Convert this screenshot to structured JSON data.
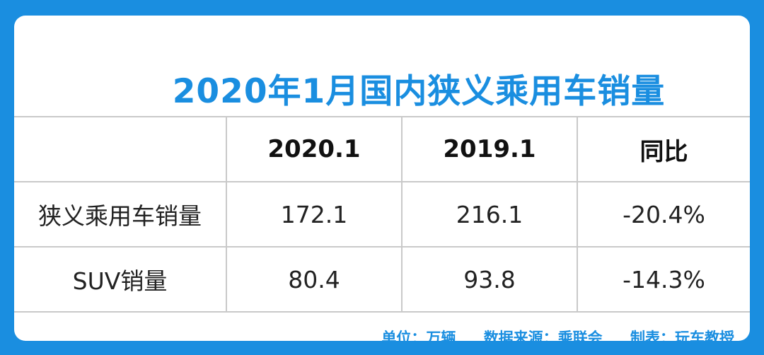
{
  "title": "2020年1月国内狭义乘用车销量",
  "table": {
    "header": [
      "",
      "2020.1",
      "2019.1",
      "同比"
    ],
    "rows": [
      [
        "狭义乘用车销量",
        "172.1",
        "216.1",
        "-20.4%"
      ],
      [
        "SUV销量",
        "80.4",
        "93.8",
        "-14.3%"
      ]
    ]
  },
  "footer": {
    "unit": "单位：万辆",
    "source": "数据来源：乘联会",
    "maker": "制表：玩车教授"
  },
  "colors": {
    "accent": "#1a8ee0",
    "border": "#c9c9c9",
    "background": "#ffffff"
  }
}
